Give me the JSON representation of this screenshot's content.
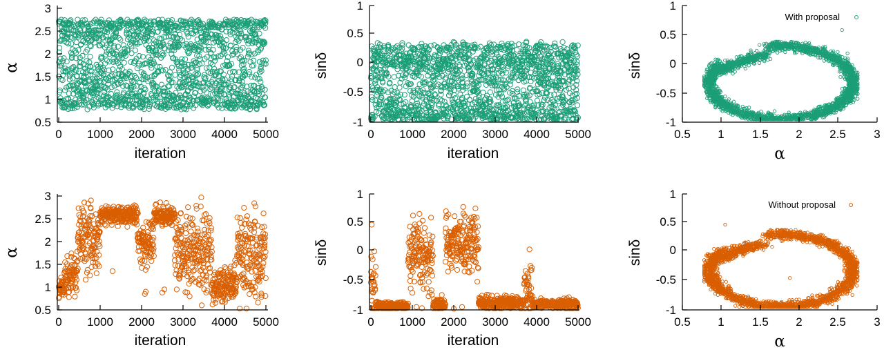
{
  "colors": {
    "with": "#1b9e77",
    "without": "#d95f02"
  },
  "chart_data": [
    {
      "id": "top-trace-alpha",
      "type": "scatter",
      "xlabel": "iteration",
      "ylabel": "α",
      "xlim": [
        0,
        5000
      ],
      "ylim": [
        0.5,
        3
      ],
      "xticks": [
        "0",
        "1000",
        "2000",
        "3000",
        "4000",
        "5000"
      ],
      "yticks": [
        "0.5",
        "1",
        "1.5",
        "2",
        "2.5",
        "3"
      ],
      "series": [
        {
          "color": "#1b9e77",
          "marker": "open-circle",
          "n_points": 5000,
          "description_values": {
            "min": 0.8,
            "max": 2.7,
            "dense_bands": [
              0.9,
              2.55
            ]
          }
        }
      ]
    },
    {
      "id": "top-trace-sindelta",
      "type": "scatter",
      "xlabel": "iteration",
      "ylabel": "sinδ",
      "xlim": [
        0,
        5000
      ],
      "ylim": [
        -1,
        1
      ],
      "xticks": [
        "0",
        "1000",
        "2000",
        "3000",
        "4000",
        "5000"
      ],
      "yticks": [
        "-1",
        "-0.5",
        "0",
        "0.5",
        "1"
      ],
      "series": [
        {
          "color": "#1b9e77",
          "marker": "open-circle",
          "n_points": 5000,
          "description_values": {
            "min": -0.97,
            "max": 0.55,
            "dense_band": -0.9
          }
        }
      ]
    },
    {
      "id": "top-joint",
      "type": "scatter",
      "xlabel": "α",
      "ylabel": "sinδ",
      "xlim": [
        0.5,
        3
      ],
      "ylim": [
        -1,
        1
      ],
      "xticks": [
        "0.5",
        "1",
        "1.5",
        "2",
        "2.5",
        "3"
      ],
      "yticks": [
        "-1",
        "-0.5",
        "0",
        "0.5",
        "1"
      ],
      "legend": "top-right",
      "series": [
        {
          "name": "With proposal",
          "color": "#1b9e77",
          "marker": "open-circle-small",
          "n_points": 5000
        }
      ]
    },
    {
      "id": "bottom-trace-alpha",
      "type": "scatter",
      "xlabel": "iteration",
      "ylabel": "α",
      "xlim": [
        0,
        5000
      ],
      "ylim": [
        0.5,
        3
      ],
      "xticks": [
        "0",
        "1000",
        "2000",
        "3000",
        "4000",
        "5000"
      ],
      "yticks": [
        "0.5",
        "1",
        "1.5",
        "2",
        "2.5",
        "3"
      ],
      "series": [
        {
          "color": "#d95f02",
          "marker": "open-circle",
          "n_points": 5000,
          "segments": [
            {
              "x": [
                0,
                150
              ],
              "y": 1.0,
              "spread": 0.12
            },
            {
              "x": [
                150,
                450
              ],
              "y": 1.25,
              "spread": 0.22
            },
            {
              "x": [
                450,
                1000
              ],
              "y": 2.05,
              "spread": 0.35
            },
            {
              "x": [
                1000,
                1900
              ],
              "y": 2.58,
              "spread": 0.1
            },
            {
              "x": [
                1900,
                2300
              ],
              "y": 2.0,
              "spread": 0.25
            },
            {
              "x": [
                2300,
                2800
              ],
              "y": 2.58,
              "spread": 0.1
            },
            {
              "x": [
                2800,
                3700
              ],
              "y": 1.75,
              "spread": 0.45
            },
            {
              "x": [
                3700,
                4300
              ],
              "y": 1.05,
              "spread": 0.2
            },
            {
              "x": [
                4300,
                5000
              ],
              "y": 1.7,
              "spread": 0.45
            }
          ]
        }
      ]
    },
    {
      "id": "bottom-trace-sindelta",
      "type": "scatter",
      "xlabel": "iteration",
      "ylabel": "sinδ",
      "xlim": [
        0,
        5000
      ],
      "ylim": [
        -1,
        1
      ],
      "xticks": [
        "0",
        "1000",
        "2000",
        "3000",
        "4000",
        "5000"
      ],
      "yticks": [
        "-1",
        "-0.5",
        "0",
        "0.5",
        "1"
      ],
      "series": [
        {
          "color": "#d95f02",
          "marker": "open-circle",
          "n_points": 5000,
          "segments": [
            {
              "x": [
                0,
                120
              ],
              "y": -0.55,
              "spread": 0.3
            },
            {
              "x": [
                120,
                900
              ],
              "y": -0.93,
              "spread": 0.03
            },
            {
              "x": [
                900,
                1500
              ],
              "y": -0.1,
              "spread": 0.3
            },
            {
              "x": [
                1500,
                1800
              ],
              "y": -0.9,
              "spread": 0.05
            },
            {
              "x": [
                1800,
                2600
              ],
              "y": 0.15,
              "spread": 0.25
            },
            {
              "x": [
                2600,
                3700
              ],
              "y": -0.88,
              "spread": 0.05
            },
            {
              "x": [
                3700,
                3900
              ],
              "y": -0.6,
              "spread": 0.25
            },
            {
              "x": [
                3900,
                5000
              ],
              "y": -0.9,
              "spread": 0.04
            }
          ]
        }
      ]
    },
    {
      "id": "bottom-joint",
      "type": "scatter",
      "xlabel": "α",
      "ylabel": "sinδ",
      "xlim": [
        0.5,
        3
      ],
      "ylim": [
        -1,
        1
      ],
      "xticks": [
        "0.5",
        "1",
        "1.5",
        "2",
        "2.5",
        "3"
      ],
      "yticks": [
        "-1",
        "-0.5",
        "0",
        "0.5",
        "1"
      ],
      "legend": "top-right",
      "series": [
        {
          "name": "Without proposal",
          "color": "#d95f02",
          "marker": "open-circle-small",
          "n_points": 5000
        }
      ]
    }
  ]
}
